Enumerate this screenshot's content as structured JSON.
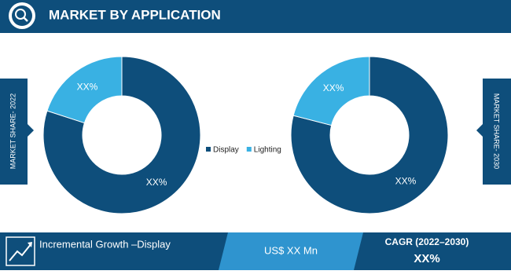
{
  "header": {
    "title": "MARKET BY APPLICATION"
  },
  "chart_data": [
    {
      "type": "pie",
      "label": "MARKET SHARE- 2022",
      "categories": [
        "Display",
        "Lighting"
      ],
      "values": [
        80,
        20
      ],
      "value_labels": [
        "XX%",
        "XX%"
      ],
      "colors": [
        "#0e4e7b",
        "#39b1e3"
      ]
    },
    {
      "type": "pie",
      "label": "MARKET SHARE- 2030",
      "categories": [
        "Display",
        "Lighting"
      ],
      "values": [
        79,
        21
      ],
      "value_labels": [
        "XX%",
        "XX%"
      ],
      "colors": [
        "#0e4e7b",
        "#39b1e3"
      ]
    }
  ],
  "footer": {
    "growth": "Incremental Growth –Display",
    "value": "US$ XX Mn",
    "cagr_label": "CAGR (2022–2030)",
    "cagr_value": "XX%"
  }
}
